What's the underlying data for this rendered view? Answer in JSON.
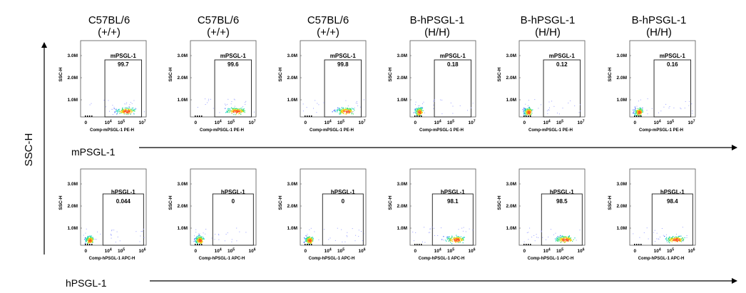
{
  "headers": [
    "C57BL/6\n(+/+)",
    "C57BL/6\n(+/+)",
    "C57BL/6\n(+/+)",
    "B-hPSGL-1\n(H/H)",
    "B-hPSGL-1\n(H/H)",
    "B-hPSGL-1\n(H/H)"
  ],
  "y_axis_label": "SSC-H",
  "row_labels": [
    "mPSGL-1",
    "hPSGL-1"
  ],
  "colors": {
    "gate": "#1a1a1a",
    "frame": "#555555",
    "axis_arrow": "#000000",
    "dots": [
      "#9aa0ff",
      "#3a60ff",
      "#10d0c0",
      "#44e070",
      "#f0d010",
      "#ff5a20"
    ]
  },
  "chart_data": [
    {
      "type": "scatter",
      "row": 0,
      "xlabel": "Comp-mPSGL-1 PE-H",
      "ylabel": "SSC-H",
      "y_ticks": [
        "1.0M",
        "2.0M",
        "3.0M"
      ],
      "x_ticks": [
        "0",
        "10^4",
        "10^5",
        "10^7"
      ],
      "gate_name": "mPSGL-1",
      "panels": [
        {
          "header": 0,
          "gate_percent": "99.7",
          "population": "positive"
        },
        {
          "header": 1,
          "gate_percent": "99.6",
          "population": "positive"
        },
        {
          "header": 2,
          "gate_percent": "99.8",
          "population": "positive"
        },
        {
          "header": 3,
          "gate_percent": "0.18",
          "population": "negative"
        },
        {
          "header": 4,
          "gate_percent": "0.12",
          "population": "negative"
        },
        {
          "header": 5,
          "gate_percent": "0.16",
          "population": "negative"
        }
      ]
    },
    {
      "type": "scatter",
      "row": 1,
      "xlabel": "Comp-hPSGL-1 APC-H",
      "ylabel": "SSC-H",
      "y_ticks": [
        "1.0M",
        "2.0M",
        "3.0M"
      ],
      "x_ticks": [
        "0",
        "10^4",
        "10^5",
        "10^6"
      ],
      "gate_name": "hPSGL-1",
      "panels": [
        {
          "header": 0,
          "gate_percent": "0.044",
          "population": "negative"
        },
        {
          "header": 1,
          "gate_percent": "0",
          "population": "negative"
        },
        {
          "header": 2,
          "gate_percent": "0",
          "population": "negative"
        },
        {
          "header": 3,
          "gate_percent": "98.1",
          "population": "positive"
        },
        {
          "header": 4,
          "gate_percent": "98.5",
          "population": "positive"
        },
        {
          "header": 5,
          "gate_percent": "98.4",
          "population": "positive"
        }
      ]
    }
  ]
}
